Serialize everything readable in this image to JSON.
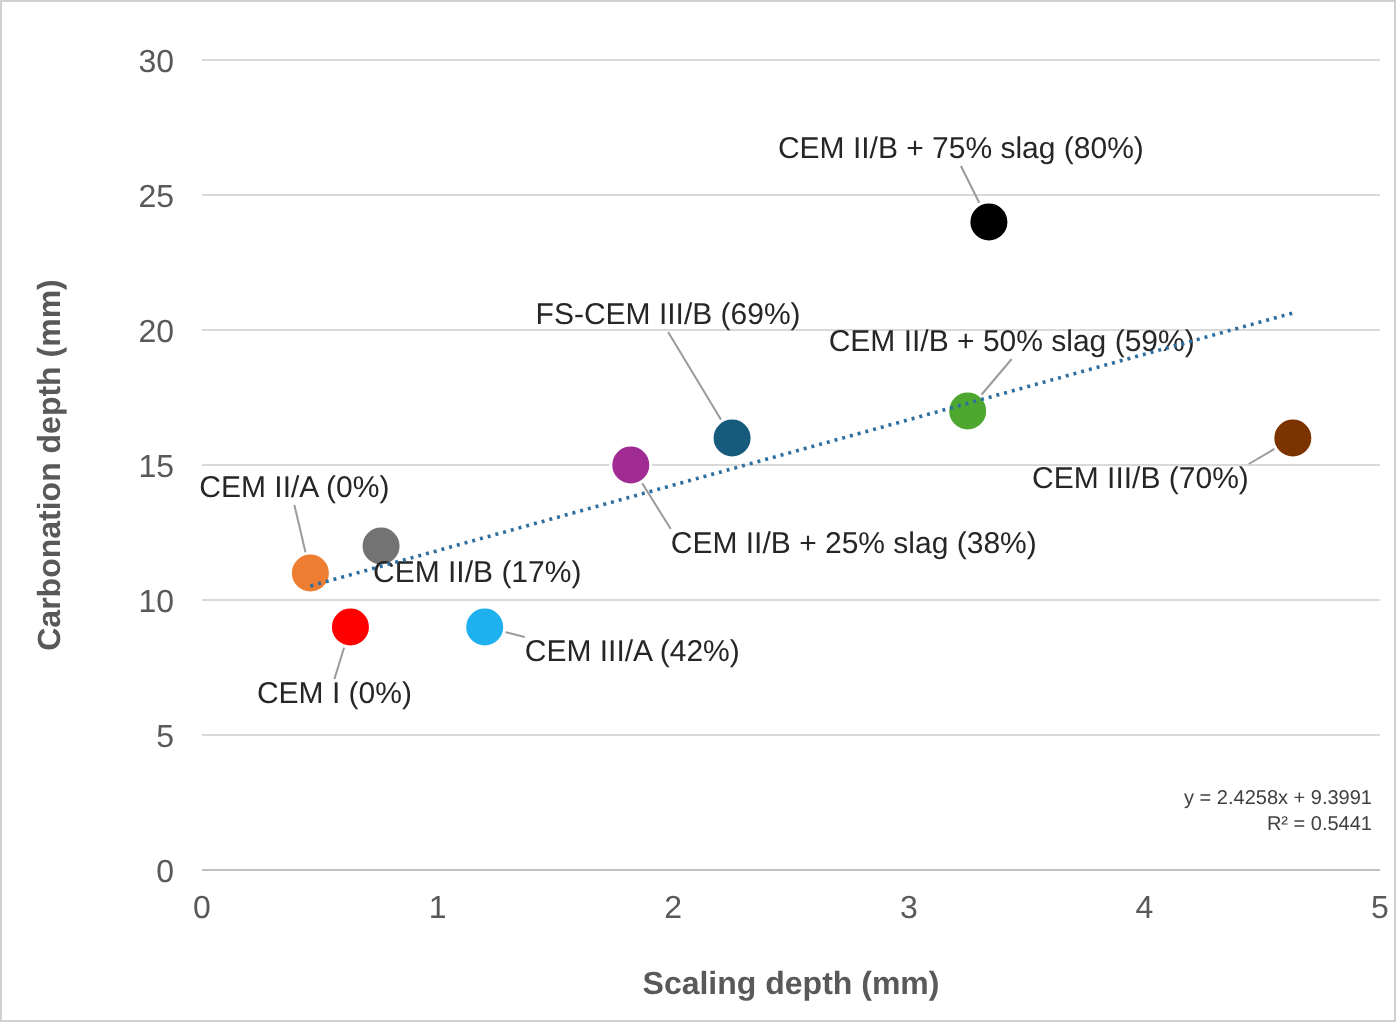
{
  "chart_data": {
    "type": "scatter",
    "xlabel": "Scaling depth (mm)",
    "ylabel": "Carbonation depth (mm)",
    "xlim": [
      0,
      5
    ],
    "xticks": [
      0,
      1,
      2,
      3,
      4,
      5
    ],
    "ylim": [
      0,
      30
    ],
    "yticks": [
      0,
      5,
      10,
      15,
      20,
      25,
      30
    ],
    "grid": "y",
    "marker": "circle",
    "series": [
      {
        "name": "CEM I (0%)",
        "color": "#ff0000",
        "x": [
          0.63
        ],
        "values": [
          9
        ]
      },
      {
        "name": "CEM II/A (0%)",
        "color": "#ed7d31",
        "x": [
          0.46
        ],
        "values": [
          11
        ]
      },
      {
        "name": "CEM II/B (17%)",
        "color": "#737373",
        "x": [
          0.76
        ],
        "values": [
          12
        ]
      },
      {
        "name": "CEM III/A (42%)",
        "color": "#1fb0f0",
        "x": [
          1.2
        ],
        "values": [
          9
        ]
      },
      {
        "name": "CEM II/B + 25% slag (38%)",
        "color": "#a02b93",
        "x": [
          1.82
        ],
        "values": [
          15
        ]
      },
      {
        "name": "FS-CEM III/B (69%)",
        "color": "#165a7d",
        "x": [
          2.25
        ],
        "values": [
          16
        ]
      },
      {
        "name": "CEM II/B + 50% slag (59%)",
        "color": "#4ea72e",
        "x": [
          3.25
        ],
        "values": [
          17
        ]
      },
      {
        "name": "CEM II/B + 75% slag (80%)",
        "color": "#000000",
        "x": [
          3.34
        ],
        "values": [
          24
        ]
      },
      {
        "name": "CEM III/B (70%)",
        "color": "#7b3300",
        "x": [
          4.63
        ],
        "values": [
          16
        ]
      },
      {
        "type": "line",
        "color": "#2e6fa0",
        "line_style": "dotted",
        "marker": "none",
        "x": [
          0.46,
          4.63
        ],
        "values": [
          10.52,
          20.63
        ]
      }
    ],
    "annotations": [
      "y = 2.4258x + 9.3991",
      "R² = 0.5441"
    ]
  }
}
